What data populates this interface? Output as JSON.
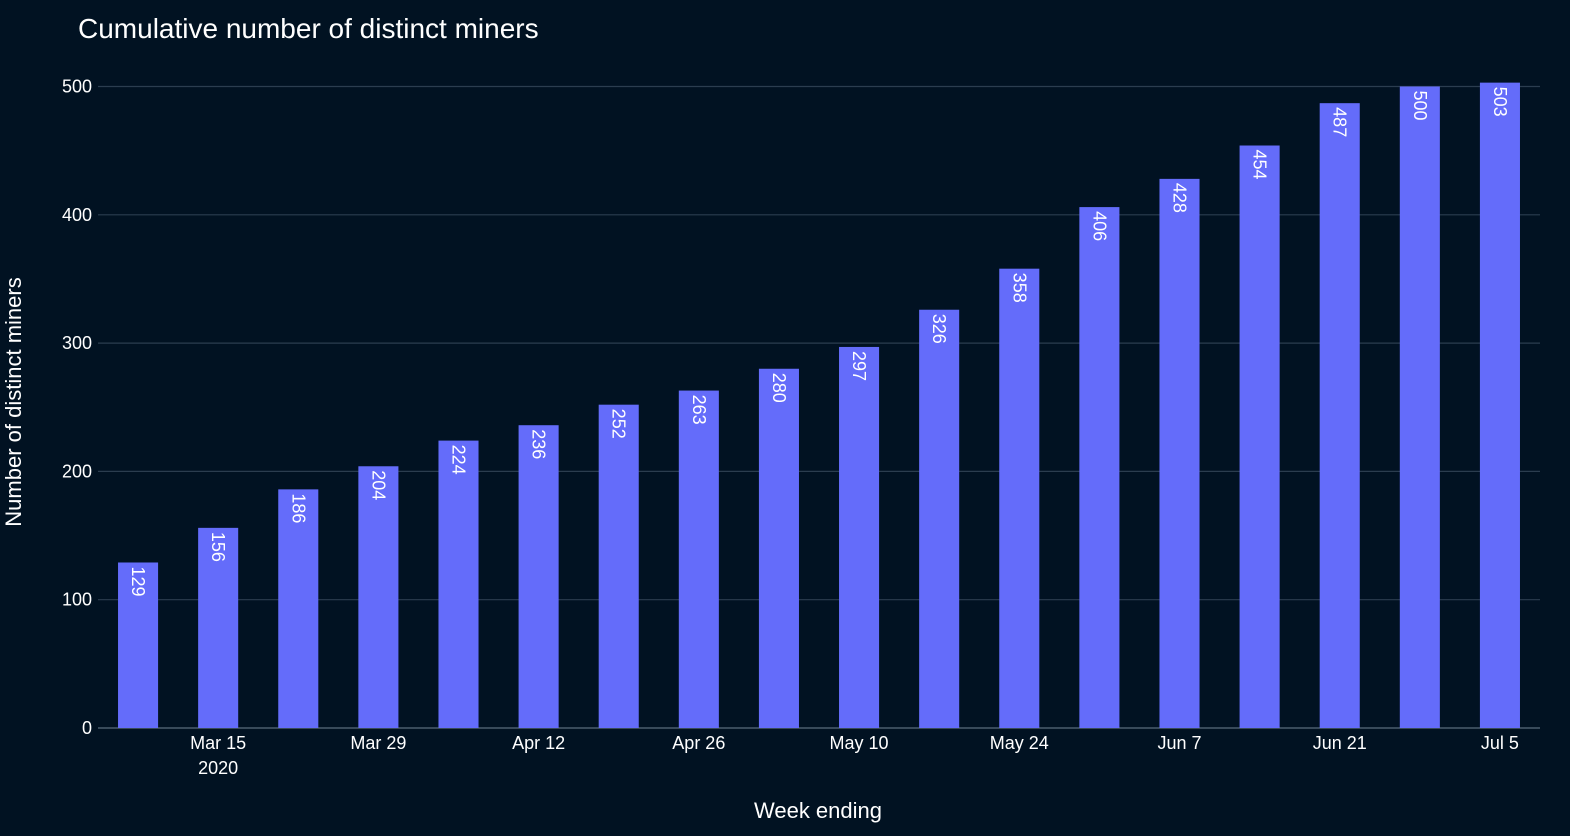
{
  "chart_data": {
    "type": "bar",
    "title": "Cumulative number of distinct miners",
    "xlabel": "Week ending",
    "ylabel": "Number of distinct miners",
    "ylim": [
      0,
      530
    ],
    "y_ticks": [
      0,
      100,
      200,
      300,
      400,
      500
    ],
    "categories": [
      "2020-03-08",
      "2020-03-15",
      "2020-03-22",
      "2020-03-29",
      "2020-04-05",
      "2020-04-12",
      "2020-04-19",
      "2020-04-26",
      "2020-05-03",
      "2020-05-10",
      "2020-05-17",
      "2020-05-24",
      "2020-05-31",
      "2020-06-07",
      "2020-06-14",
      "2020-06-21",
      "2020-06-28",
      "2020-07-05"
    ],
    "values": [
      129,
      156,
      186,
      204,
      224,
      236,
      252,
      263,
      280,
      297,
      326,
      358,
      406,
      428,
      454,
      487,
      500,
      503
    ],
    "x_ticks": [
      {
        "at": "2020-03-15",
        "label": "Mar 15",
        "sublabel": "2020"
      },
      {
        "at": "2020-03-29",
        "label": "Mar 29"
      },
      {
        "at": "2020-04-12",
        "label": "Apr 12"
      },
      {
        "at": "2020-04-26",
        "label": "Apr 26"
      },
      {
        "at": "2020-05-10",
        "label": "May 10"
      },
      {
        "at": "2020-05-24",
        "label": "May 24"
      },
      {
        "at": "2020-06-07",
        "label": "Jun 7"
      },
      {
        "at": "2020-06-21",
        "label": "Jun 21"
      },
      {
        "at": "2020-07-05",
        "label": "Jul 5"
      }
    ],
    "grid": true,
    "data_labels": true,
    "data_label_orientation": "vertical, inside bar top",
    "colors": {
      "background": "#011222",
      "bar": "#646cfa",
      "grid": "#2b3d4f",
      "text": "#ffffff"
    }
  }
}
